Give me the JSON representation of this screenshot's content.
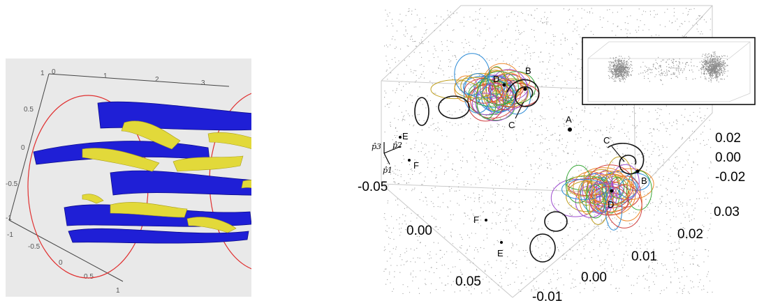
{
  "left": {
    "ticks_top": [
      "0",
      "1",
      "2",
      "3"
    ],
    "ticks_left": [
      "1",
      "0.5",
      "0",
      "-0.5",
      "-1"
    ],
    "ticks_bottom": [
      "-1",
      "-0.5",
      "0",
      "0.5",
      "1"
    ],
    "colors": {
      "tubes": "#1f1fd6",
      "sheets": "#e2d93a",
      "circles": "#e03030",
      "background": "#e9e9e9"
    }
  },
  "right": {
    "ticks_front": [
      "-0.05",
      "0.00",
      "0.05"
    ],
    "ticks_bottom": [
      "0.03",
      "0.02",
      "0.01",
      "0.00",
      "-0.01"
    ],
    "ticks_side": [
      "0.02",
      "0.00",
      "-0.02"
    ],
    "points": [
      "A",
      "B",
      "C",
      "D",
      "E",
      "F",
      "B",
      "C",
      "D",
      "E",
      "F"
    ],
    "axis_symbols": [
      "p̂3",
      "p̂2",
      "p̂1"
    ],
    "colors": {
      "orbits": [
        "#ee8a2e",
        "#a050d0",
        "#3aa83a",
        "#2a8ad6",
        "#d04040",
        "#c0a020"
      ],
      "dots": "#9a9a9a"
    }
  }
}
